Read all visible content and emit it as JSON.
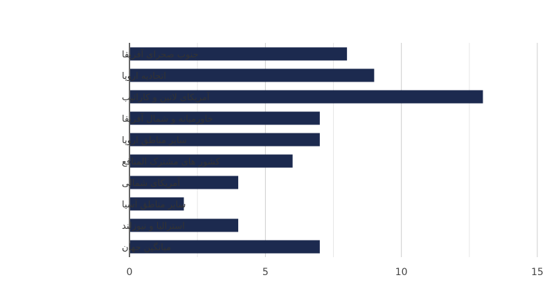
{
  "chart_data": {
    "type": "bar",
    "orientation": "horizontal",
    "categories": [
      "جنوب صحرای آفریقا",
      "اتحادیه اروپا",
      "آمریکای لاتین و کارائیب",
      "خاورمیانه و شمال آفریقا",
      "سایر مناطق اروپا",
      "کشور های مشترک المنافع",
      "آمریکای شمالی",
      "سایر مناطق آسیا",
      "استرالیا و نیوزلند",
      "میانگین جهان"
    ],
    "values": [
      8,
      9,
      13,
      7,
      7,
      6,
      4,
      2,
      4,
      7
    ],
    "xlim": [
      0,
      15
    ],
    "x_ticks": [
      0,
      5,
      10,
      15
    ],
    "x_tick_labels": [
      "0",
      "5",
      "10",
      "15"
    ],
    "grid": "vertical",
    "bar_color": "#1c2a4f",
    "title": "",
    "xlabel": "",
    "ylabel": ""
  }
}
